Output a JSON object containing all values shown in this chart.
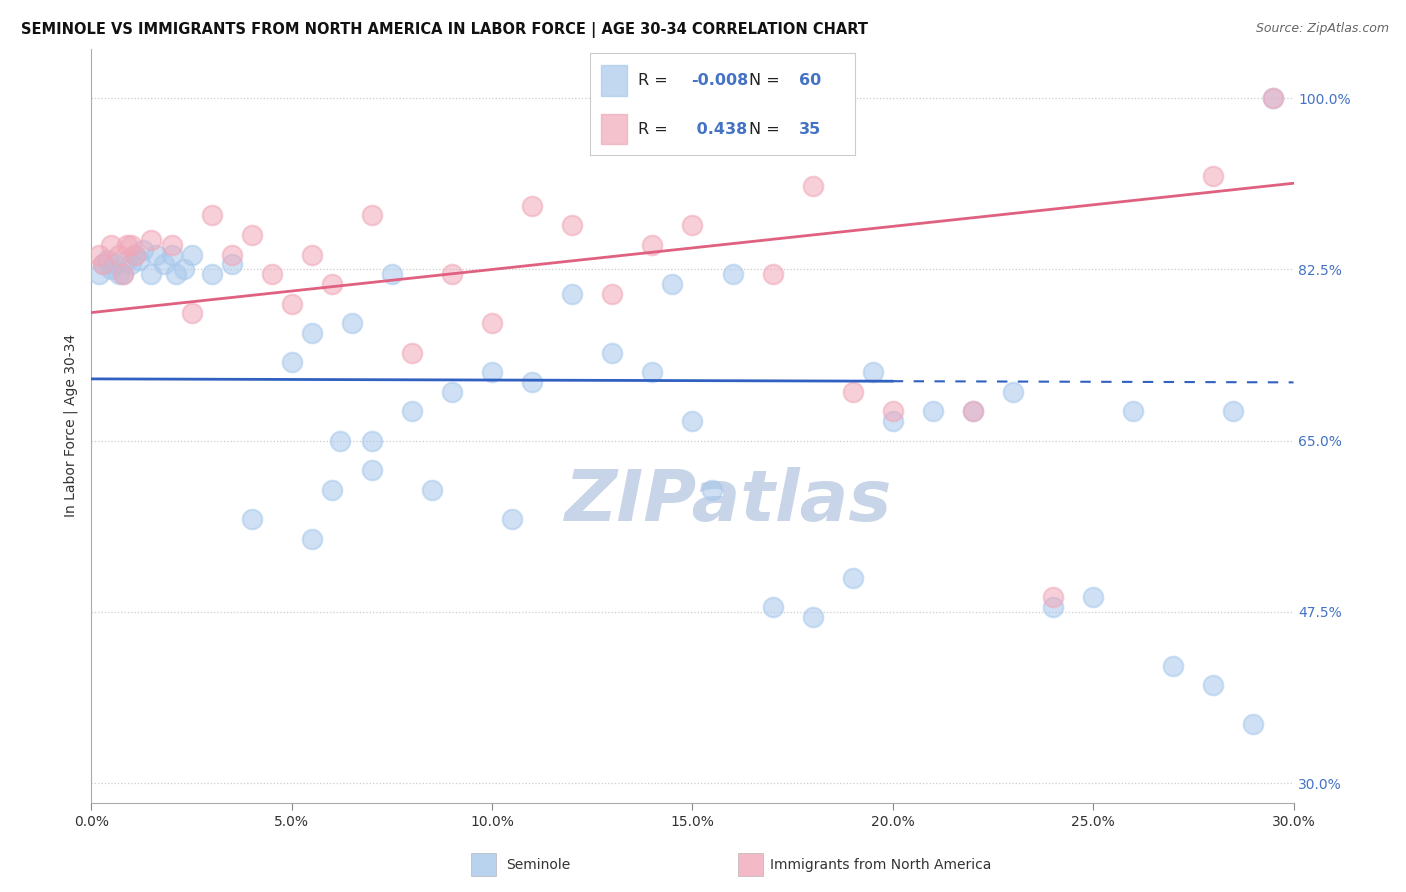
{
  "title": "SEMINOLE VS IMMIGRANTS FROM NORTH AMERICA IN LABOR FORCE | AGE 30-34 CORRELATION CHART",
  "source": "Source: ZipAtlas.com",
  "ylabel": "In Labor Force | Age 30-34",
  "xlabel_ticks": [
    "0.0%",
    "5.0%",
    "10.0%",
    "15.0%",
    "20.0%",
    "25.0%",
    "30.0%"
  ],
  "xlabel_vals": [
    0.0,
    5.0,
    10.0,
    15.0,
    20.0,
    25.0,
    30.0
  ],
  "ylabel_ticks": [
    "100.0%",
    "82.5%",
    "65.0%",
    "47.5%",
    "30.0%"
  ],
  "ylabel_vals": [
    100.0,
    82.5,
    65.0,
    47.5,
    30.0
  ],
  "xlim": [
    0.0,
    30.0
  ],
  "ylim": [
    28.0,
    105.0
  ],
  "blue_R": -0.008,
  "blue_N": 60,
  "pink_R": 0.438,
  "pink_N": 35,
  "blue_color": "#A8C8EC",
  "pink_color": "#F0A8B8",
  "blue_line_color": "#3060C0",
  "pink_line_color": "#E06080",
  "blue_label": "Seminole",
  "pink_label": "Immigrants from North America",
  "blue_x": [
    0.2,
    0.3,
    0.4,
    0.5,
    0.6,
    0.7,
    0.8,
    0.9,
    1.0,
    1.1,
    1.2,
    1.3,
    1.5,
    1.6,
    1.8,
    2.0,
    2.1,
    2.3,
    2.5,
    3.0,
    3.5,
    4.0,
    5.0,
    5.5,
    6.0,
    6.5,
    7.0,
    7.5,
    8.0,
    8.5,
    9.0,
    10.0,
    10.5,
    11.0,
    12.0,
    13.0,
    14.0,
    15.0,
    15.5,
    16.0,
    17.0,
    18.0,
    19.0,
    20.0,
    21.0,
    22.0,
    23.0,
    24.0,
    25.0,
    26.0,
    27.0,
    28.0,
    28.5,
    29.0,
    5.5,
    6.2,
    14.5,
    19.5,
    29.5,
    7.0
  ],
  "blue_y": [
    82.0,
    83.0,
    83.5,
    82.5,
    83.0,
    82.0,
    82.0,
    83.5,
    83.0,
    84.0,
    83.5,
    84.5,
    82.0,
    84.0,
    83.0,
    84.0,
    82.0,
    82.5,
    84.0,
    82.0,
    83.0,
    57.0,
    73.0,
    76.0,
    60.0,
    77.0,
    65.0,
    82.0,
    68.0,
    60.0,
    70.0,
    72.0,
    57.0,
    71.0,
    80.0,
    74.0,
    72.0,
    67.0,
    60.0,
    82.0,
    48.0,
    47.0,
    51.0,
    67.0,
    68.0,
    68.0,
    70.0,
    48.0,
    49.0,
    68.0,
    42.0,
    40.0,
    68.0,
    36.0,
    55.0,
    65.0,
    81.0,
    72.0,
    100.0,
    62.0
  ],
  "pink_x": [
    0.2,
    0.3,
    0.5,
    0.7,
    0.8,
    0.9,
    1.0,
    1.1,
    1.5,
    2.0,
    2.5,
    3.0,
    3.5,
    4.0,
    4.5,
    5.0,
    5.5,
    6.0,
    7.0,
    8.0,
    9.0,
    10.0,
    11.0,
    12.0,
    13.0,
    14.0,
    15.0,
    17.0,
    18.0,
    19.0,
    20.0,
    22.0,
    24.0,
    28.0,
    29.5
  ],
  "pink_y": [
    84.0,
    83.0,
    85.0,
    84.0,
    82.0,
    85.0,
    85.0,
    84.0,
    85.5,
    85.0,
    78.0,
    88.0,
    84.0,
    86.0,
    82.0,
    79.0,
    84.0,
    81.0,
    88.0,
    74.0,
    82.0,
    77.0,
    89.0,
    87.0,
    80.0,
    85.0,
    87.0,
    82.0,
    91.0,
    70.0,
    68.0,
    68.0,
    49.0,
    92.0,
    100.0
  ],
  "watermark_text": "ZIPatlas",
  "watermark_color": "#C8D4E8",
  "grid_color": "#CCCCCC",
  "grid_style": ":"
}
